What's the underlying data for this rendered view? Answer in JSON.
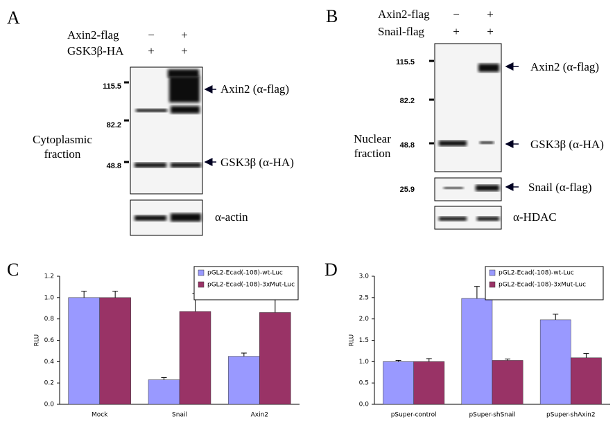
{
  "panels": [
    {
      "letter": "A",
      "rows": [
        {
          "name": "Axin2-flag",
          "signs": [
            "−",
            "+"
          ]
        },
        {
          "name": "GSK3β-HA",
          "signs": [
            "+",
            "+"
          ]
        }
      ],
      "markers": [
        "115.5",
        "82.2",
        "48.8"
      ],
      "fraction": [
        "Cytoplasmic",
        "fraction"
      ],
      "bands": [
        "Axin2 (α-flag)",
        "GSK3β (α-HA)",
        "α-actin"
      ]
    },
    {
      "letter": "B",
      "rows": [
        {
          "name": "Axin2-flag",
          "signs": [
            "−",
            "+"
          ]
        },
        {
          "name": "Snail-flag",
          "signs": [
            "+",
            "+"
          ]
        }
      ],
      "markers": [
        "115.5",
        "82.2",
        "48.8",
        "25.9"
      ],
      "fraction": [
        "Nuclear",
        "fraction"
      ],
      "bands": [
        "Axin2 (α-flag)",
        "GSK3β (α-HA)",
        "Snail (α-flag)",
        "α-HDAC"
      ]
    }
  ],
  "chart_data": [
    {
      "type": "bar",
      "title": "C",
      "ylabel": "RLU",
      "categories": [
        "Mock",
        "Snail",
        "Axin2"
      ],
      "ylim": [
        0,
        1.2
      ],
      "yticks": [
        {
          "value": 0,
          "label": "0.0"
        },
        0.2,
        0.4,
        0.6,
        0.8,
        {
          "value": 1,
          "label": "1.0"
        },
        1.2
      ],
      "legend": "upper right",
      "series": [
        {
          "name": "pGL2-Ecad(-108)-wt-Luc",
          "color": "#9999ff",
          "values": [
            1.0,
            0.23,
            0.45
          ],
          "errors": [
            0.06,
            0.02,
            0.03
          ]
        },
        {
          "name": "pGL2-Ecad(-108)-3xMut-Luc",
          "color": "#993366",
          "values": [
            1.0,
            0.87,
            0.86
          ],
          "errors": [
            0.06,
            0.17,
            0.13
          ]
        }
      ]
    },
    {
      "type": "bar",
      "title": "D",
      "ylabel": "RLU",
      "categories": [
        "pSuper-control",
        "pSuper-shSnail",
        "pSuper-shAxin2"
      ],
      "ylim": [
        0,
        3
      ],
      "yticks": [
        {
          "value": 0,
          "label": "0.0"
        },
        0.5,
        {
          "value": 1,
          "label": "1.0"
        },
        1.5,
        {
          "value": 2,
          "label": "2.0"
        },
        2.5,
        {
          "value": 3,
          "label": "3.0"
        }
      ],
      "legend": "upper right",
      "series": [
        {
          "name": "pGL2-Ecad(-108)-wt-Luc",
          "color": "#9999ff",
          "values": [
            1.0,
            2.48,
            1.98
          ],
          "errors": [
            0.03,
            0.28,
            0.13
          ]
        },
        {
          "name": "pGL2-Ecad(-108)-3xMut-Luc",
          "color": "#993366",
          "values": [
            1.0,
            1.03,
            1.09
          ],
          "errors": [
            0.07,
            0.03,
            0.1
          ]
        }
      ]
    }
  ]
}
